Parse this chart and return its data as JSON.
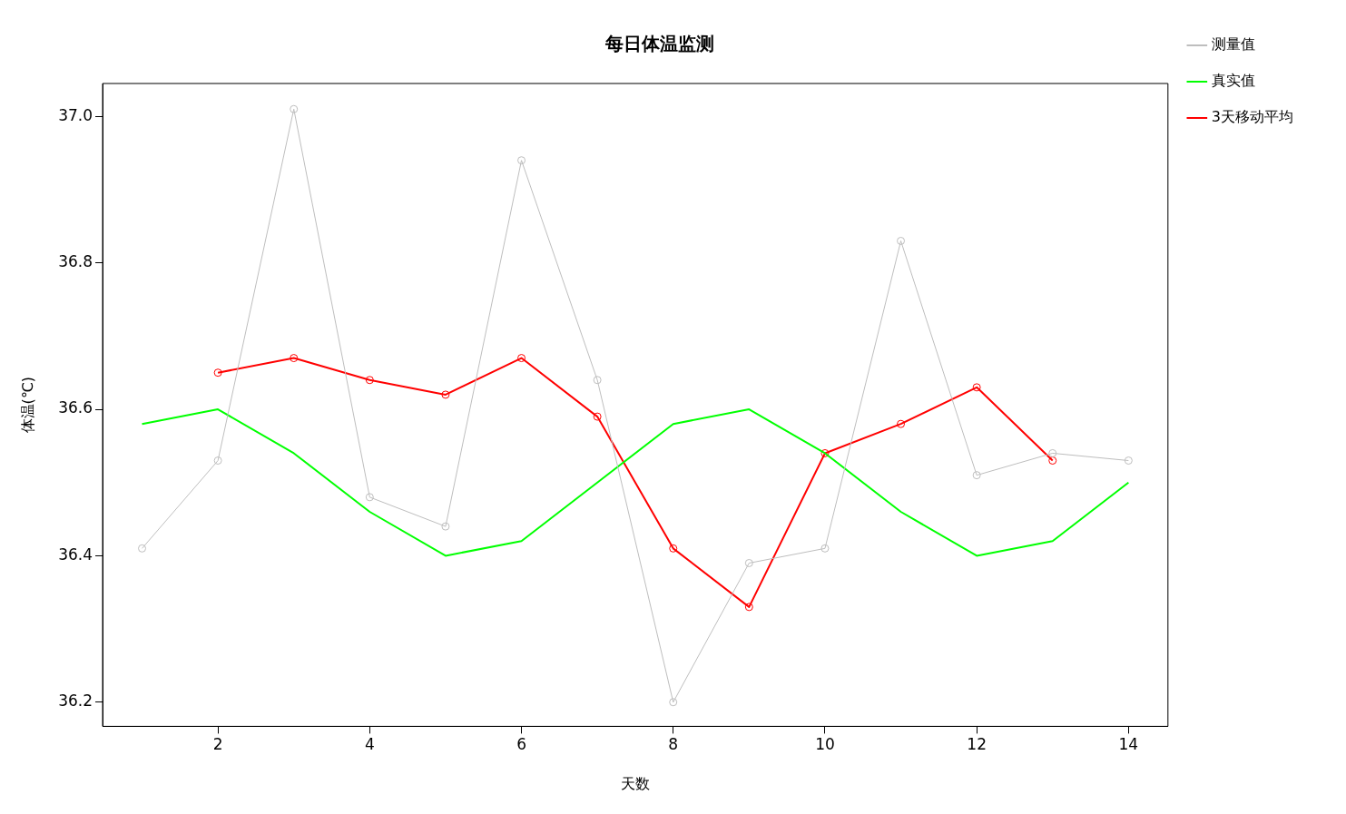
{
  "chart_data": {
    "type": "line",
    "title": "每日体温监测",
    "xlabel": "天数",
    "ylabel": "体温(℃)",
    "x": [
      1,
      2,
      3,
      4,
      5,
      6,
      7,
      8,
      9,
      10,
      11,
      12,
      13,
      14
    ],
    "xlim": [
      0.48,
      14.52
    ],
    "xticks": [
      2,
      4,
      6,
      8,
      10,
      12,
      14
    ],
    "ylim": [
      36.167,
      37.045
    ],
    "yticks": [
      {
        "value": 36.2,
        "label": "36.2"
      },
      {
        "value": 36.4,
        "label": "36.4"
      },
      {
        "value": 36.6,
        "label": "36.6"
      },
      {
        "value": 36.8,
        "label": "36.8"
      },
      {
        "value": 37.0,
        "label": "37.0"
      }
    ],
    "grid": false,
    "legend": "top right",
    "series": [
      {
        "name": "测量值",
        "color": "#bebebe",
        "marker": "circle",
        "values": [
          36.41,
          36.53,
          37.01,
          36.48,
          36.44,
          36.94,
          36.64,
          36.2,
          36.39,
          36.41,
          36.83,
          36.51,
          36.54,
          36.53
        ]
      },
      {
        "name": "真实值",
        "color": "#00ff00",
        "marker": "none",
        "values": [
          36.58,
          36.6,
          36.54,
          36.46,
          36.4,
          36.42,
          36.5,
          36.58,
          36.6,
          36.54,
          36.46,
          36.4,
          36.42,
          36.5
        ]
      },
      {
        "name": "3天移动平均",
        "color": "#ff0000",
        "marker": "circle",
        "x": [
          2,
          3,
          4,
          5,
          6,
          7,
          8,
          9,
          10,
          11,
          12,
          13
        ],
        "values": [
          36.65,
          36.67,
          36.64,
          36.62,
          36.67,
          36.59,
          36.41,
          36.33,
          36.54,
          36.58,
          36.63,
          36.53
        ]
      }
    ]
  }
}
